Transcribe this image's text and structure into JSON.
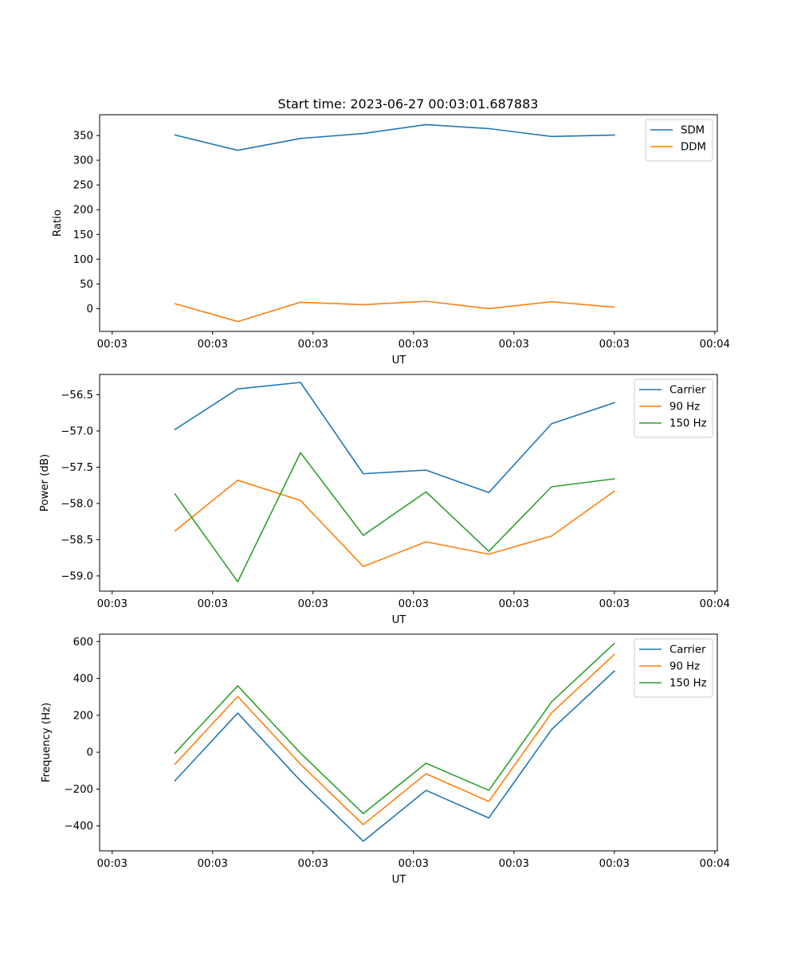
{
  "chart_data": [
    {
      "type": "line",
      "title": "Start time: 2023-06-27 00:03:01.687883",
      "xlabel": "UT",
      "ylabel": "Ratio",
      "x": [
        2.5,
        5,
        7.5,
        10,
        12.5,
        15,
        17.5,
        20
      ],
      "x_tick_values": [
        0,
        4,
        8,
        12,
        16,
        20,
        24
      ],
      "x_tick_labels": [
        "00:03",
        "00:03",
        "00:03",
        "00:03",
        "00:03",
        "00:03",
        "00:04"
      ],
      "xlim": [
        -0.5,
        24.1
      ],
      "ylim": [
        -46,
        392
      ],
      "y_ticks": [
        0,
        50,
        100,
        150,
        200,
        250,
        300,
        350
      ],
      "y_tick_labels": [
        "0",
        "50",
        "100",
        "150",
        "200",
        "250",
        "300",
        "350"
      ],
      "legend_position": "top-right",
      "grid": false,
      "series": [
        {
          "name": "SDM",
          "color": "#1f77b4",
          "values": [
            351,
            320,
            344,
            354,
            372,
            364,
            348,
            351
          ]
        },
        {
          "name": "DDM",
          "color": "#ff7f0e",
          "values": [
            10,
            -26,
            13,
            8,
            15,
            0,
            14,
            3
          ]
        }
      ]
    },
    {
      "type": "line",
      "title": "",
      "xlabel": "UT",
      "ylabel": "Power (dB)",
      "x": [
        2.5,
        5,
        7.5,
        10,
        12.5,
        15,
        17.5,
        20
      ],
      "x_tick_values": [
        0,
        4,
        8,
        12,
        16,
        20,
        24
      ],
      "x_tick_labels": [
        "00:03",
        "00:03",
        "00:03",
        "00:03",
        "00:03",
        "00:03",
        "00:04"
      ],
      "xlim": [
        -0.5,
        24.1
      ],
      "ylim": [
        -59.21,
        -56.22
      ],
      "y_ticks": [
        -56.5,
        -57.0,
        -57.5,
        -58.0,
        -58.5,
        -59.0
      ],
      "y_tick_labels": [
        "−56.5",
        "−57.0",
        "−57.5",
        "−58.0",
        "−58.5",
        "−59.0"
      ],
      "legend_position": "top-right",
      "grid": false,
      "series": [
        {
          "name": "Carrier",
          "color": "#1f77b4",
          "values": [
            -56.98,
            -56.42,
            -56.33,
            -57.59,
            -57.54,
            -57.85,
            -56.9,
            -56.61
          ]
        },
        {
          "name": "90 Hz",
          "color": "#ff7f0e",
          "values": [
            -58.38,
            -57.68,
            -57.96,
            -58.87,
            -58.53,
            -58.7,
            -58.45,
            -57.83
          ]
        },
        {
          "name": "150 Hz",
          "color": "#2ca02c",
          "values": [
            -57.87,
            -59.08,
            -57.3,
            -58.44,
            -57.84,
            -58.66,
            -57.77,
            -57.66
          ]
        }
      ]
    },
    {
      "type": "line",
      "title": "",
      "xlabel": "UT",
      "ylabel": "Frequency (Hz)",
      "x": [
        2.5,
        5,
        7.5,
        10,
        12.5,
        15,
        17.5,
        20
      ],
      "x_tick_values": [
        0,
        4,
        8,
        12,
        16,
        20,
        24
      ],
      "x_tick_labels": [
        "00:03",
        "00:03",
        "00:03",
        "00:03",
        "00:03",
        "00:03",
        "00:04"
      ],
      "xlim": [
        -0.5,
        24.1
      ],
      "ylim": [
        -535,
        640
      ],
      "y_ticks": [
        600,
        400,
        200,
        0,
        -200,
        -400
      ],
      "y_tick_labels": [
        "600",
        "400",
        "200",
        "0",
        "−200",
        "−400"
      ],
      "legend_position": "top-right",
      "grid": false,
      "series": [
        {
          "name": "Carrier",
          "color": "#1f77b4",
          "values": [
            -155,
            212,
            -155,
            -483,
            -207,
            -357,
            123,
            440
          ]
        },
        {
          "name": "90 Hz",
          "color": "#ff7f0e",
          "values": [
            -65,
            302,
            -65,
            -393,
            -117,
            -267,
            213,
            530
          ]
        },
        {
          "name": "150 Hz",
          "color": "#2ca02c",
          "values": [
            -5,
            360,
            -5,
            -333,
            -60,
            -207,
            273,
            590
          ]
        }
      ]
    }
  ]
}
